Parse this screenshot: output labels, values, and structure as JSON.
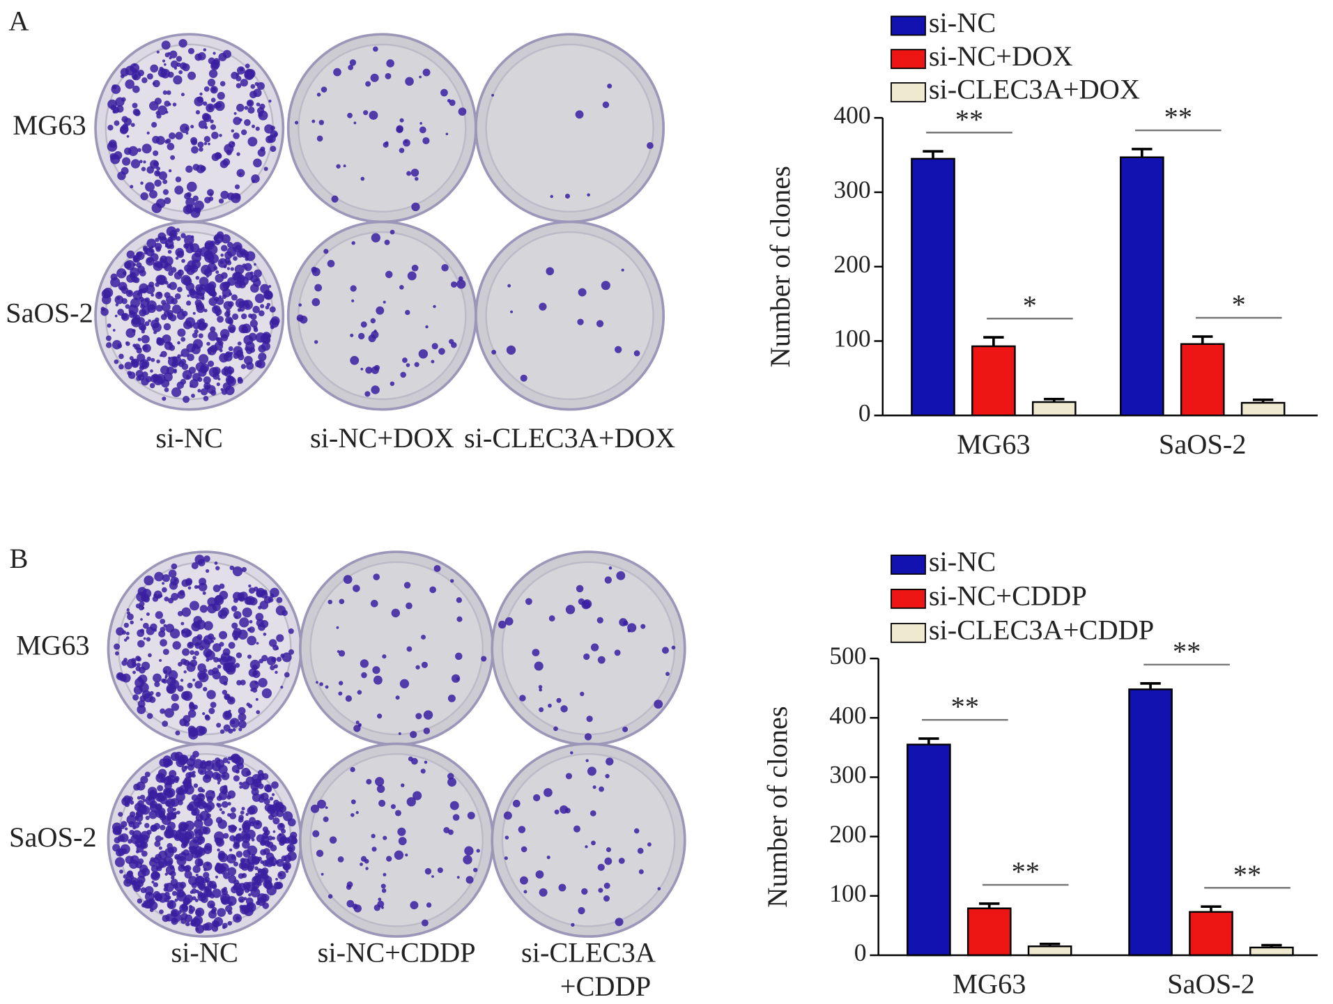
{
  "panels": [
    {
      "label": "A",
      "row_labels": [
        "MG63",
        "SaOS-2"
      ],
      "col_labels": [
        [
          "si-NC"
        ],
        [
          "si-NC+DOX"
        ],
        [
          "si-CLEC3A+DOX"
        ]
      ]
    },
    {
      "label": "B",
      "row_labels": [
        "MG63",
        "SaOS-2"
      ],
      "col_labels": [
        [
          "si-NC"
        ],
        [
          "si-NC+CDDP"
        ],
        [
          "si-CLEC3A",
          "+CDDP"
        ]
      ]
    }
  ],
  "chart_data": [
    {
      "type": "bar",
      "ylabel": "Number of clones",
      "categories": [
        "MG63",
        "SaOS-2"
      ],
      "series": [
        {
          "name": "si-NC",
          "color": "#1212b0",
          "values": [
            345,
            347
          ],
          "errors": [
            10,
            11
          ]
        },
        {
          "name": "si-NC+DOX",
          "color": "#ee1515",
          "values": [
            93,
            96
          ],
          "errors": [
            12,
            10
          ]
        },
        {
          "name": "si-CLEC3A+DOX",
          "color": "#efe9cf",
          "values": [
            18,
            17
          ],
          "errors": [
            4,
            4
          ]
        }
      ],
      "annotations": [
        {
          "text": "**",
          "category": 0,
          "series": [
            0,
            1
          ]
        },
        {
          "text": "*",
          "category": 0,
          "series": [
            1,
            2
          ]
        },
        {
          "text": "**",
          "category": 1,
          "series": [
            0,
            1
          ]
        },
        {
          "text": "*",
          "category": 1,
          "series": [
            1,
            2
          ]
        }
      ],
      "ylim": [
        0,
        400
      ],
      "yticks": [
        0,
        100,
        200,
        300,
        400
      ]
    },
    {
      "type": "bar",
      "ylabel": "Number of clones",
      "categories": [
        "MG63",
        "SaOS-2"
      ],
      "series": [
        {
          "name": "si-NC",
          "color": "#1212b0",
          "values": [
            355,
            448
          ],
          "errors": [
            10,
            10
          ]
        },
        {
          "name": "si-NC+CDDP",
          "color": "#ee1515",
          "values": [
            79,
            73
          ],
          "errors": [
            8,
            9
          ]
        },
        {
          "name": "si-CLEC3A+CDDP",
          "color": "#efe9cf",
          "values": [
            15,
            13
          ],
          "errors": [
            4,
            4
          ]
        }
      ],
      "annotations": [
        {
          "text": "**",
          "category": 0,
          "series": [
            0,
            1
          ]
        },
        {
          "text": "**",
          "category": 0,
          "series": [
            1,
            2
          ]
        },
        {
          "text": "**",
          "category": 1,
          "series": [
            0,
            1
          ]
        },
        {
          "text": "**",
          "category": 1,
          "series": [
            1,
            2
          ]
        }
      ],
      "ylim": [
        0,
        500
      ],
      "yticks": [
        0,
        100,
        200,
        300,
        400,
        500
      ]
    }
  ]
}
